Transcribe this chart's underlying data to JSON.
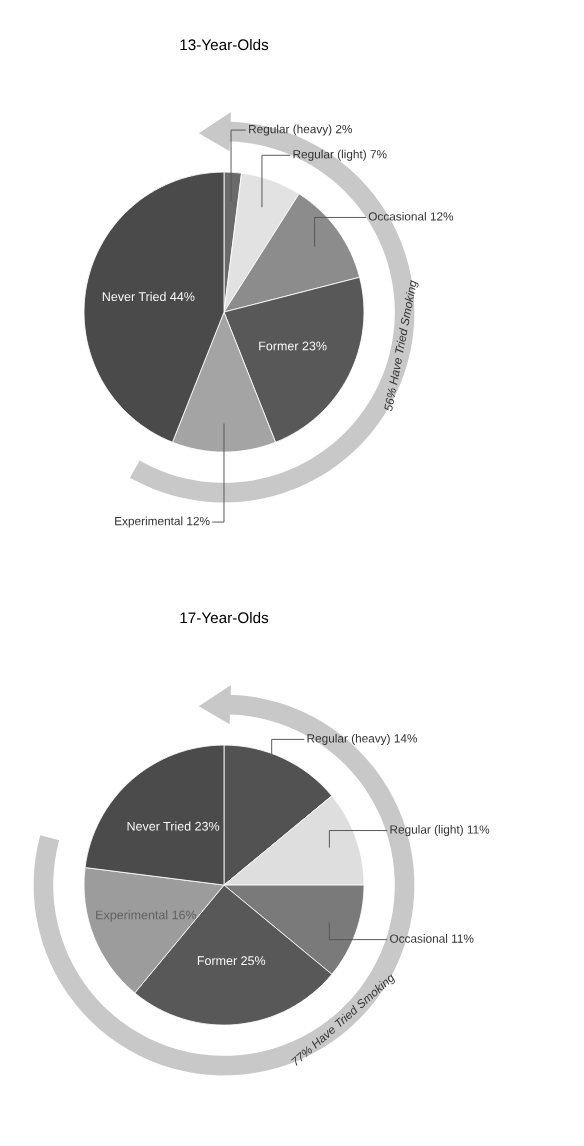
{
  "chart_data": [
    {
      "type": "pie",
      "title": "13-Year-Olds",
      "categories": [
        "Regular (heavy)",
        "Regular (light)",
        "Occasional",
        "Former",
        "Experimental",
        "Never Tried"
      ],
      "values": [
        2,
        7,
        12,
        23,
        12,
        44
      ],
      "colors": [
        "#6a6a6a",
        "#e2e2e2",
        "#8c8c8c",
        "#585858",
        "#a4a4a4",
        "#4a4a4a"
      ],
      "value_labels": [
        "2%",
        "7%",
        "12%",
        "23%",
        "12%",
        "44%"
      ],
      "annotations": [
        "56% Have Tried Smoking"
      ]
    },
    {
      "type": "pie",
      "title": "17-Year-Olds",
      "categories": [
        "Regular (heavy)",
        "Regular (light)",
        "Occasional",
        "Former",
        "Experimental",
        "Never Tried"
      ],
      "values": [
        14,
        11,
        11,
        25,
        16,
        23
      ],
      "colors": [
        "#525252",
        "#dedede",
        "#7a7a7a",
        "#585858",
        "#9c9c9c",
        "#4b4b4b"
      ],
      "value_labels": [
        "14%",
        "11%",
        "11%",
        "25%",
        "16%",
        "23%"
      ],
      "annotations": [
        "77% Have Tried Smoking"
      ]
    }
  ]
}
